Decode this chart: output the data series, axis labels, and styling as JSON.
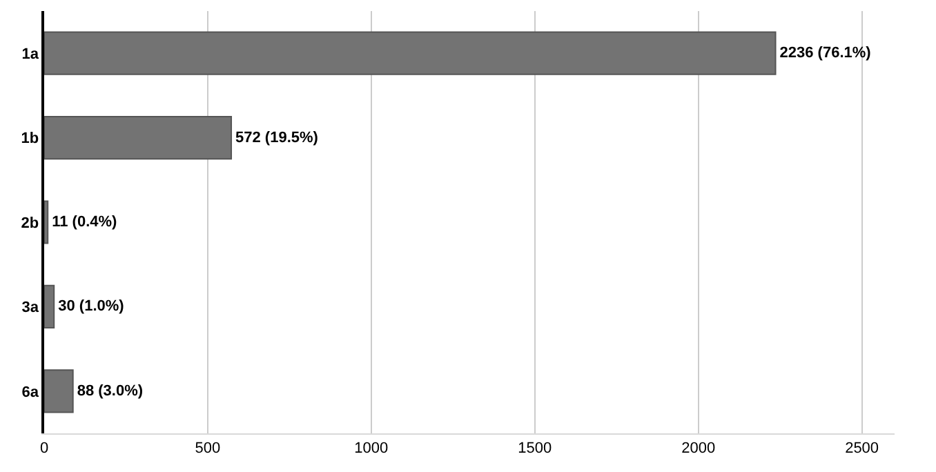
{
  "chart_data": {
    "type": "bar",
    "orientation": "horizontal",
    "categories": [
      "1a",
      "1b",
      "2b",
      "3a",
      "6a"
    ],
    "values": [
      2236,
      572,
      11,
      30,
      88
    ],
    "value_labels": [
      "2236 (76.1%)",
      "572 (19.5%)",
      "11 (0.4%)",
      "30 (1.0%)",
      "88 (3.0%)"
    ],
    "color": "#737373",
    "xlim": [
      0,
      2600
    ],
    "xticks": [
      0,
      500,
      1000,
      1500,
      2000,
      2500
    ],
    "grid": "x",
    "legend": false
  }
}
